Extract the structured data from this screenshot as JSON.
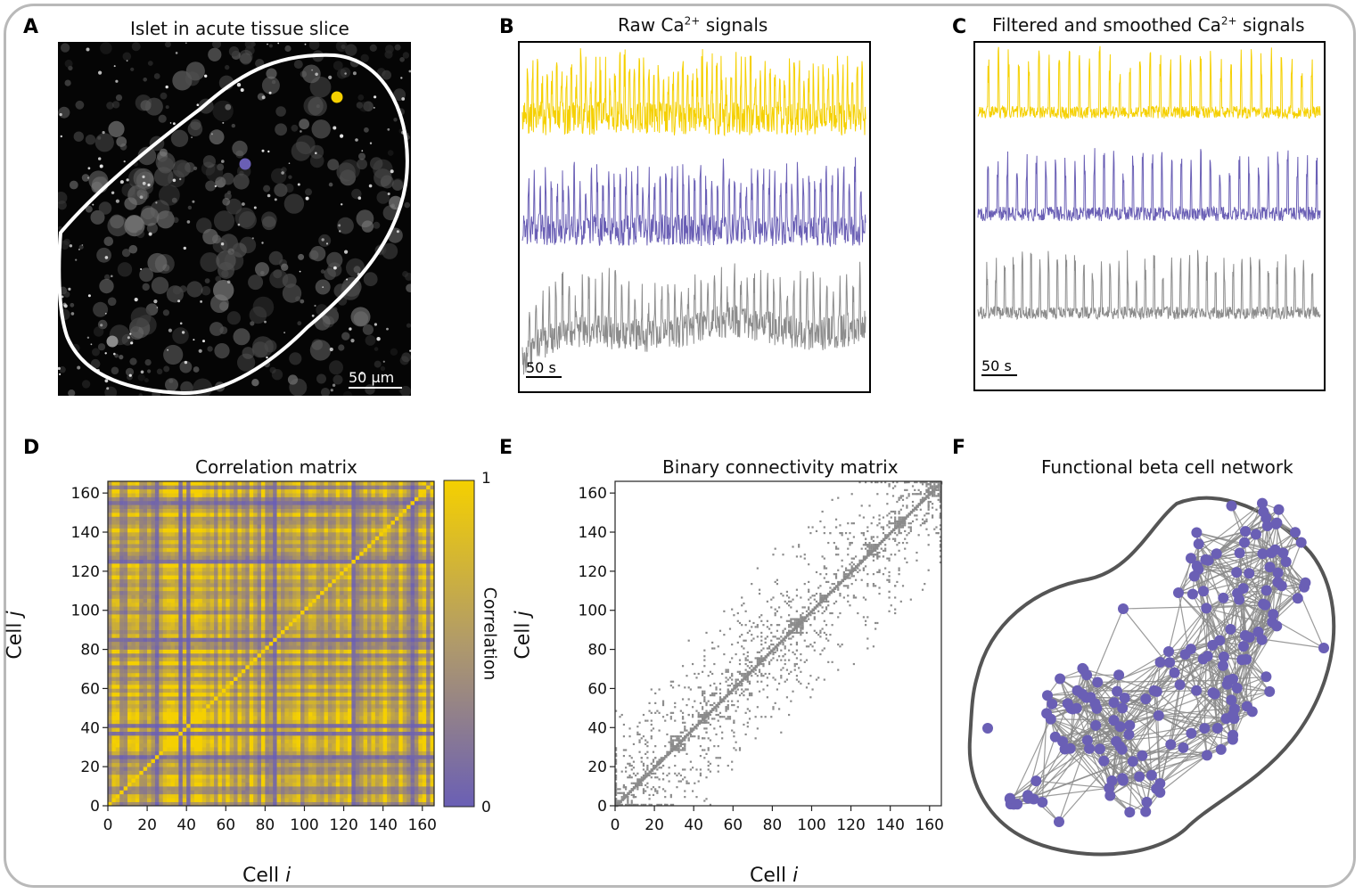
{
  "figure": {
    "panels": {
      "A": {
        "letter": "A",
        "title": "Islet in acute tissue slice",
        "scalebar": "50 µm",
        "cells": [
          {
            "name": "yellow-cell",
            "color": "#f5d000"
          },
          {
            "name": "purple-cell",
            "color": "#6a5fb5"
          },
          {
            "name": "gray-cell",
            "color": "#8c8c8c"
          }
        ]
      },
      "B": {
        "letter": "B",
        "title_pre": "Raw Ca",
        "title_sup": "2+",
        "title_post": " signals",
        "scalebar": "50 s"
      },
      "C": {
        "letter": "C",
        "title_pre": "Filtered and smoothed Ca",
        "title_sup": "2+",
        "title_post": " signals",
        "scalebar": "50 s"
      },
      "D": {
        "letter": "D",
        "title": "Correlation matrix"
      },
      "E": {
        "letter": "E",
        "title": "Binary connectivity matrix"
      },
      "F": {
        "letter": "F",
        "title": "Functional beta cell network"
      }
    },
    "colors": {
      "yellow": "#f5d000",
      "purple": "#6a5fb5",
      "gray": "#8c8c8c",
      "matrix_gray": "#8a8a8a"
    }
  },
  "chart_data": [
    {
      "type": "line",
      "panel": "B",
      "title": "Raw Ca2+ signals",
      "series": [
        {
          "name": "yellow cell",
          "color": "#f5d000"
        },
        {
          "name": "purple cell",
          "color": "#6a5fb5"
        },
        {
          "name": "gray cell",
          "color": "#8c8c8c"
        }
      ],
      "scalebar": "50 s"
    },
    {
      "type": "line",
      "panel": "C",
      "title": "Filtered and smoothed Ca2+ signals",
      "series": [
        {
          "name": "yellow cell",
          "color": "#f5d000"
        },
        {
          "name": "purple cell",
          "color": "#6a5fb5"
        },
        {
          "name": "gray cell",
          "color": "#8c8c8c"
        }
      ],
      "scalebar": "50 s"
    },
    {
      "type": "heatmap",
      "panel": "D",
      "title": "Correlation matrix",
      "xlabel_pre": "Cell ",
      "xlabel_var": "i",
      "ylabel_pre": "Cell ",
      "ylabel_var": "j",
      "xticks": [
        "0",
        "20",
        "40",
        "60",
        "80",
        "100",
        "120",
        "140",
        "160"
      ],
      "yticks": [
        "0",
        "20",
        "40",
        "60",
        "80",
        "100",
        "120",
        "140",
        "160"
      ],
      "xlim": [
        0,
        166
      ],
      "ylim": [
        0,
        166
      ],
      "colorbar": {
        "label": "Correlation",
        "min": "0",
        "max": "1",
        "low_color": "#6a5fb5",
        "high_color": "#f5d000"
      }
    },
    {
      "type": "heatmap",
      "panel": "E",
      "title": "Binary connectivity matrix",
      "xlabel_pre": "Cell ",
      "xlabel_var": "i",
      "ylabel_pre": "Cell ",
      "ylabel_var": "j",
      "xticks": [
        "0",
        "20",
        "40",
        "60",
        "80",
        "100",
        "120",
        "140",
        "160"
      ],
      "yticks": [
        "0",
        "20",
        "40",
        "60",
        "80",
        "100",
        "120",
        "140",
        "160"
      ],
      "xlim": [
        0,
        166
      ],
      "ylim": [
        0,
        166
      ],
      "dense_blocks": [
        [
          10,
          14
        ],
        [
          28,
          36
        ],
        [
          42,
          48
        ],
        [
          72,
          76
        ],
        [
          88,
          96
        ],
        [
          104,
          108
        ],
        [
          128,
          134
        ],
        [
          142,
          148
        ],
        [
          158,
          166
        ]
      ]
    },
    {
      "type": "network",
      "panel": "F",
      "title": "Functional beta cell network",
      "node_color": "#6a5fb5",
      "edge_color": "#8a8a8a"
    }
  ]
}
